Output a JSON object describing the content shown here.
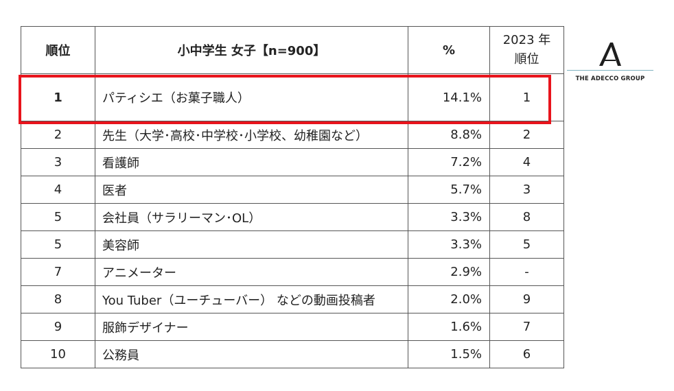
{
  "table": {
    "headers": {
      "rank": "順位",
      "job": "小中学生 女子【n=900】",
      "pct": "%",
      "prev_line1": "2023 年",
      "prev_line2": "順位"
    },
    "rows": [
      {
        "rank": "1",
        "job": "パティシエ（お菓子職人）",
        "pct": "14.1%",
        "prev": "1"
      },
      {
        "rank": "2",
        "job": "先生（大学･高校･中学校･小学校、幼稚園など）",
        "pct": "8.8%",
        "prev": "2"
      },
      {
        "rank": "3",
        "job": "看護師",
        "pct": "7.2%",
        "prev": "4"
      },
      {
        "rank": "4",
        "job": "医者",
        "pct": "5.7%",
        "prev": "3"
      },
      {
        "rank": "5",
        "job": "会社員（サラリーマン･OL）",
        "pct": "3.3%",
        "prev": "8"
      },
      {
        "rank": "5",
        "job": "美容師",
        "pct": "3.3%",
        "prev": "5"
      },
      {
        "rank": "7",
        "job": "アニメーター",
        "pct": "2.9%",
        "prev": "-"
      },
      {
        "rank": "8",
        "job": "You Tuber（ユーチューバー） などの動画投稿者",
        "pct": "2.0%",
        "prev": "9"
      },
      {
        "rank": "9",
        "job": "服飾デザイナー",
        "pct": "1.6%",
        "prev": "7"
      },
      {
        "rank": "10",
        "job": "公務員",
        "pct": "1.5%",
        "prev": "6"
      }
    ]
  },
  "logo": {
    "text": "THE ADECCO GROUP",
    "icon": "adecco-a-icon"
  },
  "highlight_color": "#e8141c",
  "chart_data": {
    "type": "table",
    "columns": [
      "順位",
      "小中学生 女子【n=900】",
      "%",
      "2023 年 順位"
    ],
    "rows": [
      [
        "1",
        "パティシエ（お菓子職人）",
        14.1,
        "1"
      ],
      [
        "2",
        "先生（大学･高校･中学校･小学校、幼稚園など）",
        8.8,
        "2"
      ],
      [
        "3",
        "看護師",
        7.2,
        "4"
      ],
      [
        "4",
        "医者",
        5.7,
        "3"
      ],
      [
        "5",
        "会社員（サラリーマン･OL）",
        3.3,
        "8"
      ],
      [
        "5",
        "美容師",
        3.3,
        "5"
      ],
      [
        "7",
        "アニメーター",
        2.9,
        "-"
      ],
      [
        "8",
        "You Tuber（ユーチューバー） などの動画投稿者",
        2.0,
        "9"
      ],
      [
        "9",
        "服飾デザイナー",
        1.6,
        "7"
      ],
      [
        "10",
        "公務員",
        1.5,
        "6"
      ]
    ]
  }
}
